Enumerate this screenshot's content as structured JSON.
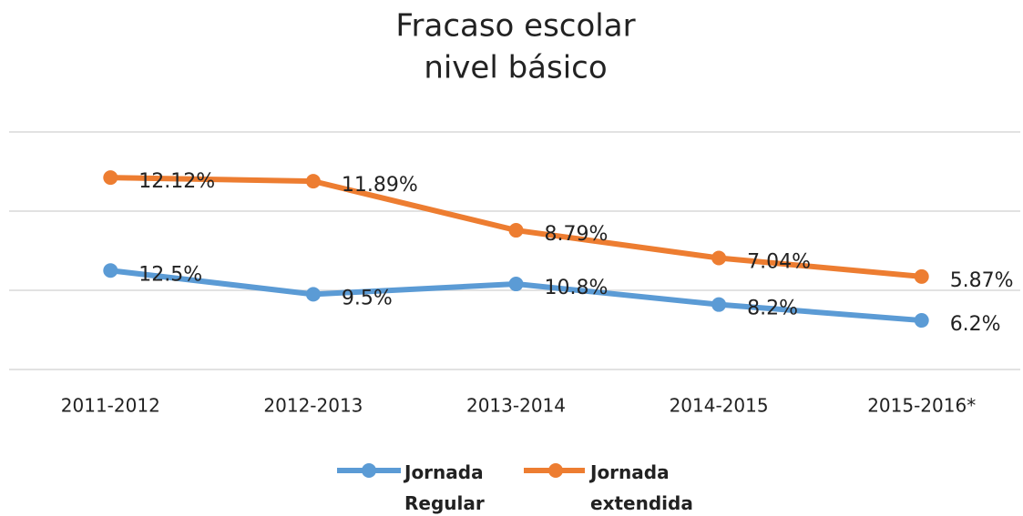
{
  "chart_data": {
    "type": "line",
    "title": [
      "Fracaso escolar",
      "nivel básico"
    ],
    "categories": [
      "2011-2012",
      "2012-2013",
      "2013-2014",
      "2014-2015",
      "2015-2016*"
    ],
    "series": [
      {
        "name": "Jornada Regular",
        "color": "#5b9bd5",
        "values": [
          12.5,
          9.5,
          10.8,
          8.2,
          6.2
        ],
        "value_labels": [
          "12.5%",
          "9.5%",
          "10.8%",
          "8.2%",
          "6.2%"
        ]
      },
      {
        "name": "Jornada extendida",
        "color": "#ed7d31",
        "axis": "y2",
        "values": [
          12.12,
          11.89,
          8.79,
          7.04,
          5.87
        ],
        "value_labels": [
          "12.12%",
          "11.89%",
          "8.79%",
          "7.04%",
          "5.87%"
        ]
      }
    ],
    "ylim": [
      0,
      30
    ],
    "yticks": [
      0,
      10,
      20,
      30
    ],
    "y2lim": [
      0,
      15
    ],
    "grid": true,
    "legend": "bottom"
  }
}
